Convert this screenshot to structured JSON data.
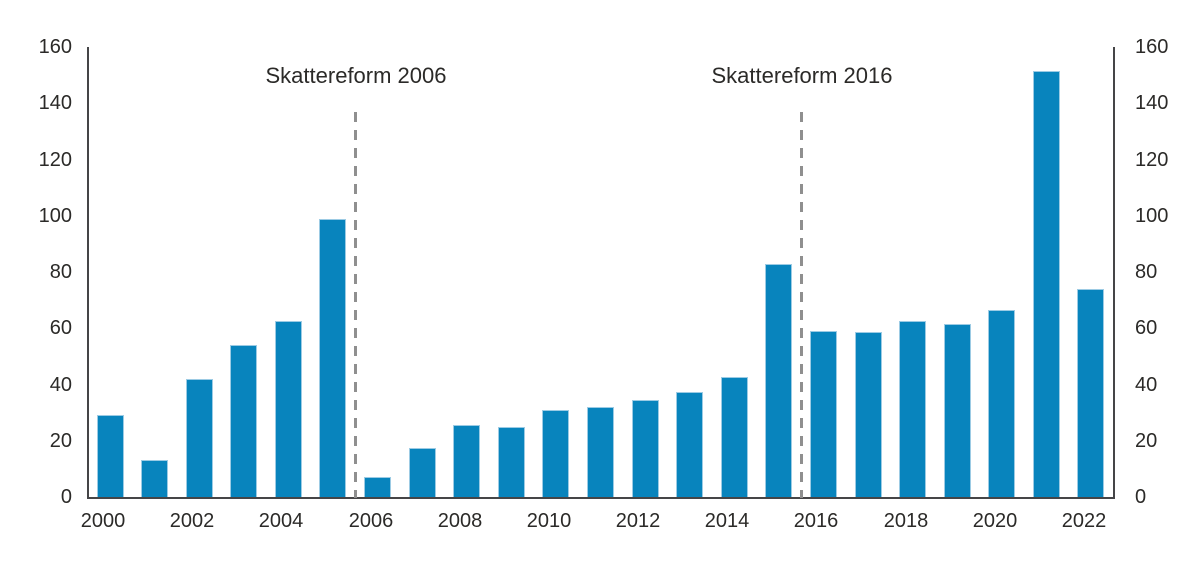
{
  "chart_data": {
    "type": "bar",
    "categories": [
      2000,
      2001,
      2002,
      2003,
      2004,
      2005,
      2006,
      2007,
      2008,
      2009,
      2010,
      2011,
      2012,
      2013,
      2014,
      2015,
      2016,
      2017,
      2018,
      2019,
      2020,
      2021,
      2022
    ],
    "values": [
      29,
      13,
      42,
      54,
      62.5,
      99,
      7,
      17.5,
      25.5,
      25,
      31,
      32,
      34.5,
      37.5,
      42.5,
      83,
      59,
      58.5,
      62.5,
      61.5,
      66.5,
      151.5,
      74
    ],
    "ylim": [
      0,
      160
    ],
    "yticks": [
      0,
      20,
      40,
      60,
      80,
      100,
      120,
      140,
      160
    ],
    "ytick_sides": [
      "left",
      "right"
    ],
    "xticks": [
      2000,
      2002,
      2004,
      2006,
      2008,
      2010,
      2012,
      2014,
      2016,
      2018,
      2020,
      2022
    ],
    "grid": false,
    "legend_position": "none",
    "annotations": [
      {
        "label": "Skattereform 2006",
        "x_year": 2005.5
      },
      {
        "label": "Skattereform 2016",
        "x_year": 2015.5
      }
    ],
    "colors": {
      "bar_fill": "#0884bd",
      "bar_edge": "#9ccbe4",
      "axis_line": "#454547",
      "dashed_line": "#8f8f8f",
      "text": "#2b2a28",
      "background": "#ffffff"
    }
  }
}
